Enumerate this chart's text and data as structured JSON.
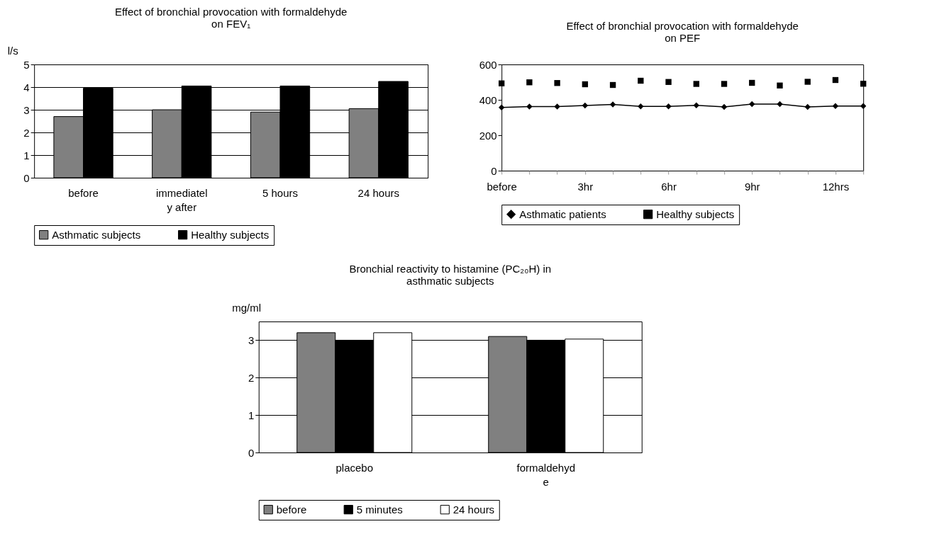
{
  "chart_data": [
    {
      "type": "bar",
      "title": "Effect of bronchial provocation with formaldehyde\non FEV₁",
      "ylabel": "l/s",
      "categories": [
        "before",
        "immediatel\ny after",
        "5 hours",
        "24 hours"
      ],
      "series": [
        {
          "name": "Asthmatic subjects",
          "color": "#808080",
          "values": [
            2.7,
            3.0,
            2.9,
            3.05
          ]
        },
        {
          "name": "Healthy subjects",
          "color": "#000000",
          "values": [
            3.95,
            4.05,
            4.05,
            4.25
          ]
        }
      ],
      "ylim": [
        0,
        5
      ],
      "yticks": [
        0,
        1,
        2,
        3,
        4,
        5
      ],
      "grid": "y",
      "legend": "bottom"
    },
    {
      "type": "line",
      "title": "Effect of bronchial provocation with formaldehyde\non PEF",
      "categories": [
        "before",
        null,
        null,
        "3hr",
        null,
        null,
        "6hr",
        null,
        null,
        "9hr",
        null,
        null,
        "12hrs",
        null
      ],
      "series": [
        {
          "name": "Asthmatic patients",
          "color": "#000000",
          "marker": "diamond",
          "values": [
            357,
            362,
            362,
            368,
            374,
            363,
            363,
            369,
            360,
            376,
            376,
            360,
            365,
            365
          ]
        },
        {
          "name": "Healthy subjects",
          "type": "scatter",
          "color": "#000000",
          "marker": "square",
          "values": [
            493,
            499,
            495,
            488,
            484,
            508,
            501,
            490,
            490,
            496,
            481,
            502,
            512,
            491
          ]
        }
      ],
      "ylim": [
        0,
        600
      ],
      "yticks": [
        0,
        200,
        400,
        600
      ],
      "legend": "bottom"
    },
    {
      "type": "bar",
      "title": "Bronchial reactivity to histamine (PC₂₀H) in\nasthmatic subjects",
      "ylabel": "mg/ml",
      "categories": [
        "placebo",
        "formaldehyd\ne"
      ],
      "series": [
        {
          "name": "before",
          "color": "#808080",
          "values": [
            3.2,
            3.1
          ]
        },
        {
          "name": "5 minutes",
          "color": "#000000",
          "values": [
            3.0,
            3.0
          ]
        },
        {
          "name": "24 hours",
          "color": "#ffffff",
          "values": [
            3.2,
            3.03
          ]
        }
      ],
      "ylim": [
        0,
        3.5
      ],
      "yticks": [
        0,
        1,
        2,
        3
      ],
      "grid": "y",
      "legend": "bottom"
    }
  ]
}
